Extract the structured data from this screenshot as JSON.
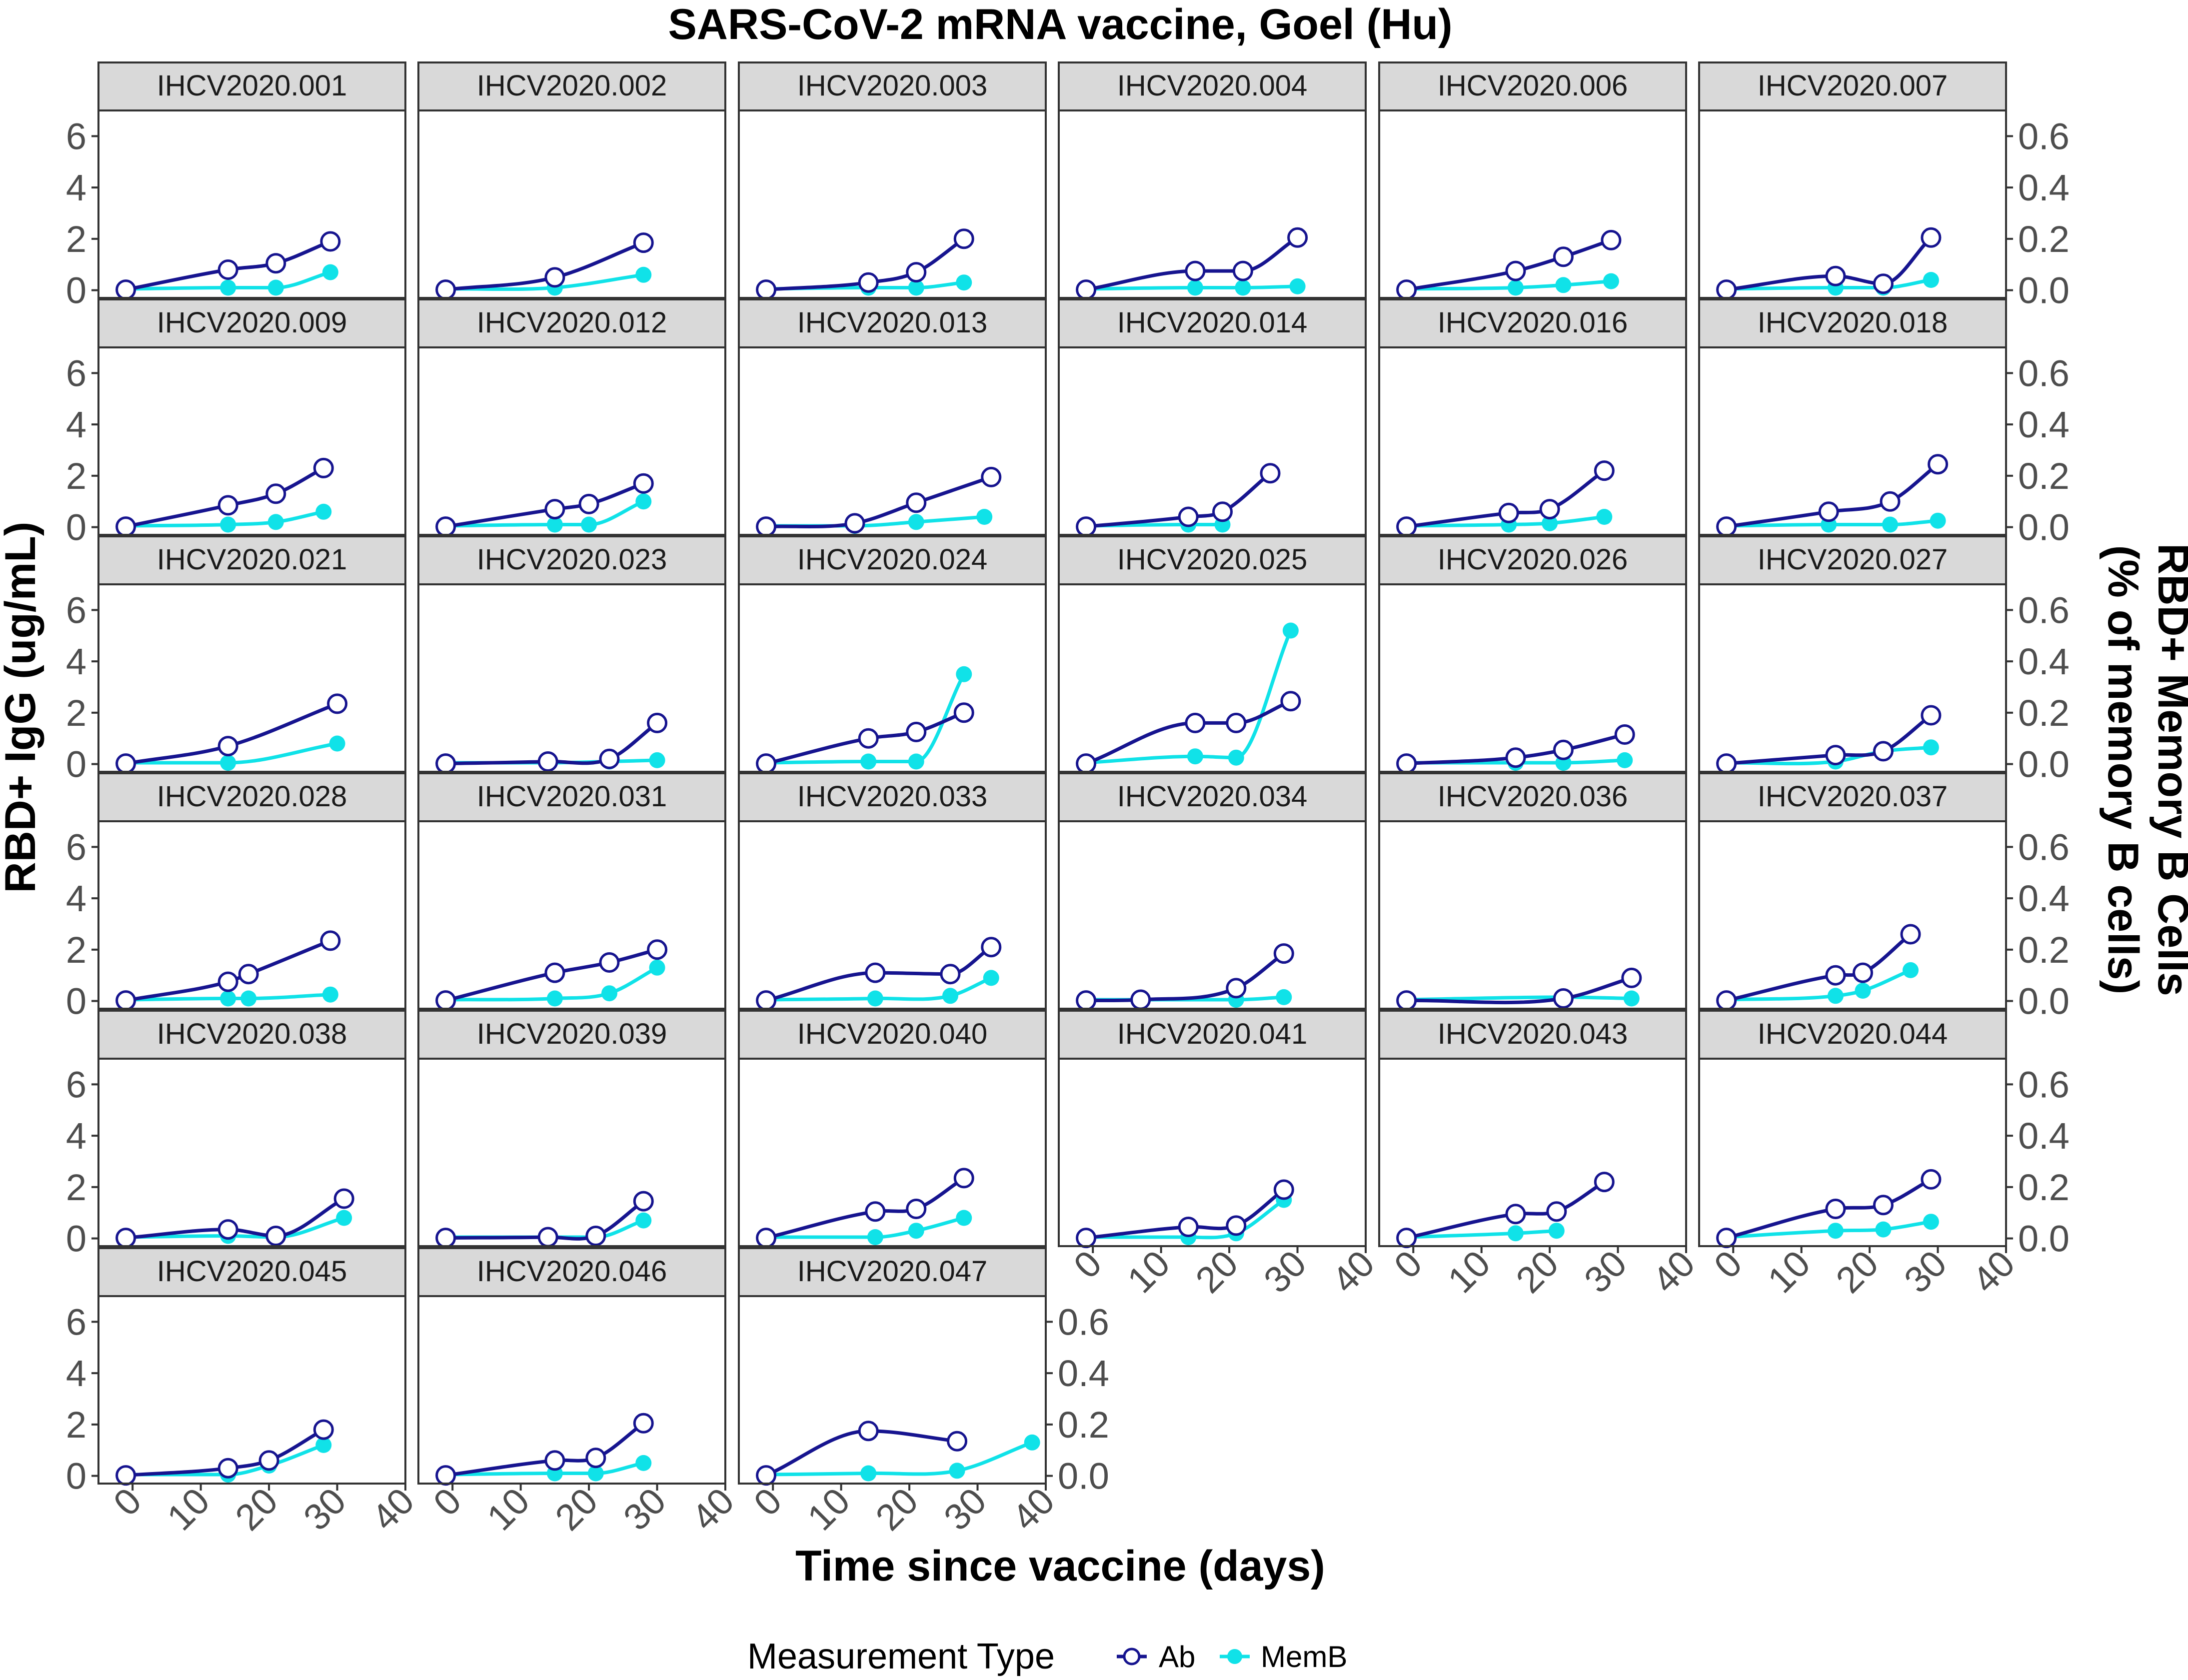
{
  "chart_data": {
    "type": "line",
    "title": "SARS-CoV-2 mRNA vaccine, Goel (Hu)",
    "xlabel": "Time since vaccine (days)",
    "ylabel": "RBD+ IgG (ug/mL)",
    "ylabel_right": [
      "RBD+ Memory B Cells",
      "(% of memory B cells)"
    ],
    "xlim": [
      -5,
      40
    ],
    "xticks": [
      0,
      10,
      20,
      30,
      40
    ],
    "ylim": [
      -0.3,
      7.0
    ],
    "yticks": [
      0,
      2,
      4,
      6
    ],
    "ylim_right": [
      -0.03,
      0.7
    ],
    "yticks_right": [
      0.0,
      0.2,
      0.4,
      0.6
    ],
    "legend": {
      "title": "Measurement Type",
      "position": "bottom",
      "entries": [
        {
          "name": "Ab",
          "color": "#16148f",
          "marker": "open-circle"
        },
        {
          "name": "MemB",
          "color": "#10e2e8",
          "marker": "filled-circle"
        }
      ]
    },
    "colors": {
      "Ab": "#16148f",
      "MemB": "#10e2e8"
    },
    "panels": [
      {
        "id": "IHCV2020.001",
        "Ab": [
          [
            -1,
            0.02
          ],
          [
            14,
            0.8
          ],
          [
            21,
            1.05
          ],
          [
            29,
            1.9
          ]
        ],
        "MemB": [
          [
            -1,
            0.005
          ],
          [
            14,
            0.01
          ],
          [
            21,
            0.01
          ],
          [
            29,
            0.07
          ]
        ]
      },
      {
        "id": "IHCV2020.002",
        "Ab": [
          [
            -1,
            0.02
          ],
          [
            15,
            0.5
          ],
          [
            28,
            1.85
          ]
        ],
        "MemB": [
          [
            -1,
            0.005
          ],
          [
            15,
            0.01
          ],
          [
            28,
            0.06
          ]
        ]
      },
      {
        "id": "IHCV2020.003",
        "Ab": [
          [
            -1,
            0.02
          ],
          [
            14,
            0.3
          ],
          [
            21,
            0.7
          ],
          [
            28,
            2.0
          ]
        ],
        "MemB": [
          [
            -1,
            0.005
          ],
          [
            14,
            0.01
          ],
          [
            21,
            0.01
          ],
          [
            28,
            0.03
          ]
        ]
      },
      {
        "id": "IHCV2020.004",
        "Ab": [
          [
            -1,
            0.02
          ],
          [
            15,
            0.75
          ],
          [
            22,
            0.75
          ],
          [
            30,
            2.05
          ]
        ],
        "MemB": [
          [
            -1,
            0.005
          ],
          [
            15,
            0.01
          ],
          [
            22,
            0.01
          ],
          [
            30,
            0.015
          ]
        ]
      },
      {
        "id": "IHCV2020.006",
        "Ab": [
          [
            -1,
            0.02
          ],
          [
            15,
            0.75
          ],
          [
            22,
            1.3
          ],
          [
            29,
            1.95
          ]
        ],
        "MemB": [
          [
            -1,
            0.005
          ],
          [
            15,
            0.01
          ],
          [
            22,
            0.02
          ],
          [
            29,
            0.035
          ]
        ]
      },
      {
        "id": "IHCV2020.007",
        "Ab": [
          [
            -1,
            0.02
          ],
          [
            15,
            0.55
          ],
          [
            22,
            0.25
          ],
          [
            29,
            2.05
          ]
        ],
        "MemB": [
          [
            -1,
            0.005
          ],
          [
            15,
            0.01
          ],
          [
            22,
            0.01
          ],
          [
            29,
            0.04
          ]
        ]
      },
      {
        "id": "IHCV2020.009",
        "Ab": [
          [
            -1,
            0.02
          ],
          [
            14,
            0.85
          ],
          [
            21,
            1.3
          ],
          [
            28,
            2.3
          ]
        ],
        "MemB": [
          [
            -1,
            0.005
          ],
          [
            14,
            0.01
          ],
          [
            21,
            0.02
          ],
          [
            28,
            0.06
          ]
        ]
      },
      {
        "id": "IHCV2020.012",
        "Ab": [
          [
            -1,
            0.02
          ],
          [
            15,
            0.7
          ],
          [
            20,
            0.9
          ],
          [
            28,
            1.7
          ]
        ],
        "MemB": [
          [
            -1,
            0.005
          ],
          [
            15,
            0.01
          ],
          [
            20,
            0.01
          ],
          [
            28,
            0.1
          ]
        ]
      },
      {
        "id": "IHCV2020.013",
        "Ab": [
          [
            -1,
            0.02
          ],
          [
            12,
            0.15
          ],
          [
            21,
            0.95
          ],
          [
            32,
            1.95
          ]
        ],
        "MemB": [
          [
            -1,
            0.005
          ],
          [
            12,
            0.005
          ],
          [
            21,
            0.02
          ],
          [
            31,
            0.04
          ]
        ]
      },
      {
        "id": "IHCV2020.014",
        "Ab": [
          [
            -1,
            0.02
          ],
          [
            14,
            0.4
          ],
          [
            19,
            0.6
          ],
          [
            26,
            2.1
          ]
        ],
        "MemB": [
          [
            -1,
            0.005
          ],
          [
            14,
            0.01
          ],
          [
            19,
            0.01
          ]
        ]
      },
      {
        "id": "IHCV2020.016",
        "Ab": [
          [
            -1,
            0.02
          ],
          [
            14,
            0.55
          ],
          [
            20,
            0.7
          ],
          [
            28,
            2.2
          ]
        ],
        "MemB": [
          [
            -1,
            0.005
          ],
          [
            14,
            0.01
          ],
          [
            20,
            0.015
          ],
          [
            28,
            0.04
          ]
        ]
      },
      {
        "id": "IHCV2020.018",
        "Ab": [
          [
            -1,
            0.02
          ],
          [
            14,
            0.6
          ],
          [
            23,
            1.0
          ],
          [
            30,
            2.45
          ]
        ],
        "MemB": [
          [
            -1,
            0.005
          ],
          [
            14,
            0.01
          ],
          [
            23,
            0.01
          ],
          [
            30,
            0.025
          ]
        ]
      },
      {
        "id": "IHCV2020.021",
        "Ab": [
          [
            -1,
            0.02
          ],
          [
            14,
            0.7
          ],
          [
            30,
            2.35
          ]
        ],
        "MemB": [
          [
            -1,
            0.005
          ],
          [
            14,
            0.005
          ],
          [
            30,
            0.08
          ]
        ]
      },
      {
        "id": "IHCV2020.023",
        "Ab": [
          [
            -1,
            0.02
          ],
          [
            14,
            0.1
          ],
          [
            23,
            0.2
          ],
          [
            30,
            1.6
          ]
        ],
        "MemB": [
          [
            -1,
            0.005
          ],
          [
            14,
            0.005
          ],
          [
            23,
            0.01
          ],
          [
            30,
            0.015
          ]
        ]
      },
      {
        "id": "IHCV2020.024",
        "Ab": [
          [
            -1,
            0.02
          ],
          [
            14,
            1.0
          ],
          [
            21,
            1.25
          ],
          [
            28,
            2.0
          ]
        ],
        "MemB": [
          [
            -1,
            0.005
          ],
          [
            14,
            0.01
          ],
          [
            21,
            0.01
          ],
          [
            28,
            0.35
          ]
        ]
      },
      {
        "id": "IHCV2020.025",
        "Ab": [
          [
            -1,
            0.02
          ],
          [
            15,
            1.6
          ],
          [
            21,
            1.6
          ],
          [
            29,
            2.45
          ]
        ],
        "MemB": [
          [
            -1,
            0.005
          ],
          [
            15,
            0.03
          ],
          [
            21,
            0.025
          ],
          [
            29,
            0.52
          ]
        ]
      },
      {
        "id": "IHCV2020.026",
        "Ab": [
          [
            -1,
            0.02
          ],
          [
            15,
            0.25
          ],
          [
            22,
            0.55
          ],
          [
            31,
            1.15
          ]
        ],
        "MemB": [
          [
            -1,
            0.005
          ],
          [
            15,
            0.005
          ],
          [
            22,
            0.005
          ],
          [
            31,
            0.015
          ]
        ]
      },
      {
        "id": "IHCV2020.027",
        "Ab": [
          [
            -1,
            0.02
          ],
          [
            15,
            0.35
          ],
          [
            22,
            0.5
          ],
          [
            29,
            1.9
          ]
        ],
        "MemB": [
          [
            -1,
            0.005
          ],
          [
            15,
            0.01
          ],
          [
            22,
            0.05
          ],
          [
            29,
            0.065
          ]
        ]
      },
      {
        "id": "IHCV2020.028",
        "Ab": [
          [
            -1,
            0.02
          ],
          [
            14,
            0.75
          ],
          [
            17,
            1.05
          ],
          [
            29,
            2.35
          ]
        ],
        "MemB": [
          [
            -1,
            0.005
          ],
          [
            14,
            0.01
          ],
          [
            17,
            0.01
          ],
          [
            29,
            0.025
          ]
        ]
      },
      {
        "id": "IHCV2020.031",
        "Ab": [
          [
            -1,
            0.02
          ],
          [
            15,
            1.1
          ],
          [
            23,
            1.5
          ],
          [
            30,
            2.0
          ]
        ],
        "MemB": [
          [
            -1,
            0.005
          ],
          [
            15,
            0.01
          ],
          [
            23,
            0.03
          ],
          [
            30,
            0.13
          ]
        ]
      },
      {
        "id": "IHCV2020.033",
        "Ab": [
          [
            -1,
            0.02
          ],
          [
            15,
            1.1
          ],
          [
            26,
            1.05
          ],
          [
            32,
            2.1
          ]
        ],
        "MemB": [
          [
            -1,
            0.005
          ],
          [
            15,
            0.01
          ],
          [
            26,
            0.02
          ],
          [
            32,
            0.09
          ]
        ]
      },
      {
        "id": "IHCV2020.034",
        "Ab": [
          [
            -1,
            0.02
          ],
          [
            7,
            0.05
          ],
          [
            21,
            0.5
          ],
          [
            28,
            1.85
          ]
        ],
        "MemB": [
          [
            -1,
            0.005
          ],
          [
            7,
            0.005
          ],
          [
            21,
            0.005
          ],
          [
            28,
            0.015
          ]
        ]
      },
      {
        "id": "IHCV2020.036",
        "Ab": [
          [
            -1,
            0.02
          ],
          [
            22,
            0.1
          ],
          [
            32,
            0.9
          ]
        ],
        "MemB": [
          [
            -1,
            0.005
          ],
          [
            22,
            0.015
          ],
          [
            32,
            0.01
          ]
        ]
      },
      {
        "id": "IHCV2020.037",
        "Ab": [
          [
            -1,
            0.02
          ],
          [
            15,
            1.0
          ],
          [
            19,
            1.1
          ],
          [
            26,
            2.6
          ]
        ],
        "MemB": [
          [
            -1,
            0.005
          ],
          [
            15,
            0.02
          ],
          [
            19,
            0.04
          ],
          [
            26,
            0.12
          ]
        ]
      },
      {
        "id": "IHCV2020.038",
        "Ab": [
          [
            -1,
            0.02
          ],
          [
            14,
            0.35
          ],
          [
            21,
            0.1
          ],
          [
            31,
            1.55
          ]
        ],
        "MemB": [
          [
            -1,
            0.005
          ],
          [
            14,
            0.01
          ],
          [
            21,
            0.005
          ],
          [
            31,
            0.08
          ]
        ]
      },
      {
        "id": "IHCV2020.039",
        "Ab": [
          [
            -1,
            0.02
          ],
          [
            14,
            0.05
          ],
          [
            21,
            0.1
          ],
          [
            28,
            1.45
          ]
        ],
        "MemB": [
          [
            -1,
            0.005
          ],
          [
            14,
            0.005
          ],
          [
            21,
            0.005
          ],
          [
            28,
            0.07
          ]
        ]
      },
      {
        "id": "IHCV2020.040",
        "Ab": [
          [
            -1,
            0.02
          ],
          [
            15,
            1.05
          ],
          [
            21,
            1.15
          ],
          [
            28,
            2.35
          ]
        ],
        "MemB": [
          [
            -1,
            0.005
          ],
          [
            15,
            0.005
          ],
          [
            21,
            0.03
          ],
          [
            28,
            0.08
          ]
        ]
      },
      {
        "id": "IHCV2020.041",
        "Ab": [
          [
            -1,
            0.02
          ],
          [
            14,
            0.45
          ],
          [
            21,
            0.5
          ],
          [
            28,
            1.9
          ]
        ],
        "MemB": [
          [
            -1,
            0.005
          ],
          [
            14,
            0.005
          ],
          [
            21,
            0.02
          ],
          [
            28,
            0.15
          ]
        ]
      },
      {
        "id": "IHCV2020.043",
        "Ab": [
          [
            -1,
            0.02
          ],
          [
            15,
            0.95
          ],
          [
            21,
            1.05
          ],
          [
            28,
            2.2
          ]
        ],
        "MemB": [
          [
            -1,
            0.005
          ],
          [
            15,
            0.02
          ],
          [
            21,
            0.03
          ]
        ]
      },
      {
        "id": "IHCV2020.044",
        "Ab": [
          [
            -1,
            0.02
          ],
          [
            15,
            1.15
          ],
          [
            22,
            1.3
          ],
          [
            29,
            2.3
          ]
        ],
        "MemB": [
          [
            -1,
            0.005
          ],
          [
            15,
            0.03
          ],
          [
            22,
            0.035
          ],
          [
            29,
            0.065
          ]
        ]
      },
      {
        "id": "IHCV2020.045",
        "Ab": [
          [
            -1,
            0.02
          ],
          [
            14,
            0.3
          ],
          [
            20,
            0.6
          ],
          [
            28,
            1.8
          ]
        ],
        "MemB": [
          [
            -1,
            0.005
          ],
          [
            14,
            0.005
          ],
          [
            20,
            0.04
          ],
          [
            28,
            0.12
          ]
        ]
      },
      {
        "id": "IHCV2020.046",
        "Ab": [
          [
            -1,
            0.02
          ],
          [
            15,
            0.6
          ],
          [
            21,
            0.7
          ],
          [
            28,
            2.05
          ]
        ],
        "MemB": [
          [
            -1,
            0.005
          ],
          [
            15,
            0.01
          ],
          [
            21,
            0.01
          ],
          [
            28,
            0.05
          ]
        ]
      },
      {
        "id": "IHCV2020.047",
        "Ab": [
          [
            -1,
            0.02
          ],
          [
            14,
            1.75
          ],
          [
            27,
            1.35
          ]
        ],
        "MemB": [
          [
            -1,
            0.005
          ],
          [
            14,
            0.01
          ],
          [
            27,
            0.02
          ],
          [
            38,
            0.13
          ]
        ]
      }
    ]
  }
}
